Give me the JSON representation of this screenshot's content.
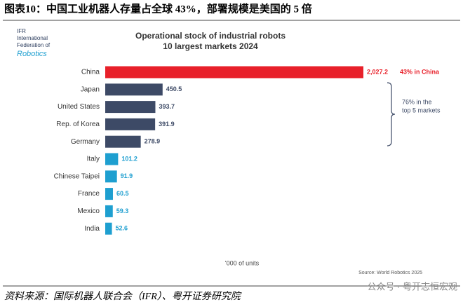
{
  "figure_caption": "图表10：中国工业机器人存量占全球 43%，部署规模是美国的 5 倍",
  "footer_source": "资料来源：国际机器人联合会（IFR）、粤开证券研究院",
  "watermark": "公众号 · 粤开志恒宏观",
  "chart_data": {
    "type": "hbar",
    "logo": [
      "IFR",
      "International",
      "Federation of",
      "Robotics"
    ],
    "title": "Operational stock of industrial robots",
    "subtitle": "10 largest markets 2024",
    "categories": [
      "China",
      "Japan",
      "United States",
      "Rep. of Korea",
      "Germany",
      "Italy",
      "Chinese Taipei",
      "France",
      "Mexico",
      "India"
    ],
    "values": [
      2027.2,
      450.5,
      393.7,
      391.9,
      278.9,
      101.2,
      91.9,
      60.5,
      59.3,
      52.6
    ],
    "value_labels": [
      "2,027.2",
      "450.5",
      "393.7",
      "391.9",
      "278.9",
      "101.2",
      "91.9",
      "60.5",
      "59.3",
      "52.6"
    ],
    "colors": [
      "#e8202a",
      "#3d4a66",
      "#3d4a66",
      "#3d4a66",
      "#3d4a66",
      "#1e9fd0",
      "#1e9fd0",
      "#1e9fd0",
      "#1e9fd0",
      "#1e9fd0"
    ],
    "annotation_china": "43% in China",
    "annotation_top5": [
      "76% in the",
      "top 5 markets"
    ],
    "xlabel": "'000 of units",
    "source": "Source: World Robotics 2025"
  }
}
